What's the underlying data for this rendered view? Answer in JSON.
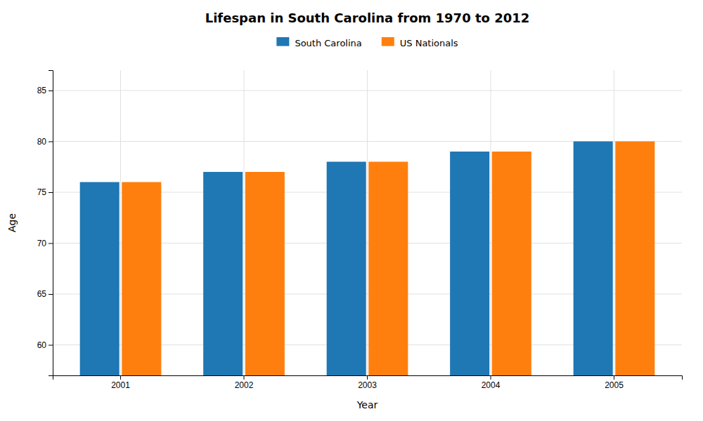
{
  "chart_data": {
    "type": "bar",
    "title": "Lifespan in South Carolina from 1970 to 2012",
    "xlabel": "Year",
    "ylabel": "Age",
    "categories": [
      "2001",
      "2002",
      "2003",
      "2004",
      "2005"
    ],
    "series": [
      {
        "name": "South Carolina",
        "values": [
          76,
          77,
          78,
          79,
          80
        ]
      },
      {
        "name": "US Nationals",
        "values": [
          76,
          77,
          78,
          79,
          80
        ]
      }
    ],
    "ylim": [
      57,
      87
    ],
    "yticks": [
      60,
      65,
      70,
      75,
      80,
      85
    ],
    "grid": true,
    "legend": "top"
  }
}
